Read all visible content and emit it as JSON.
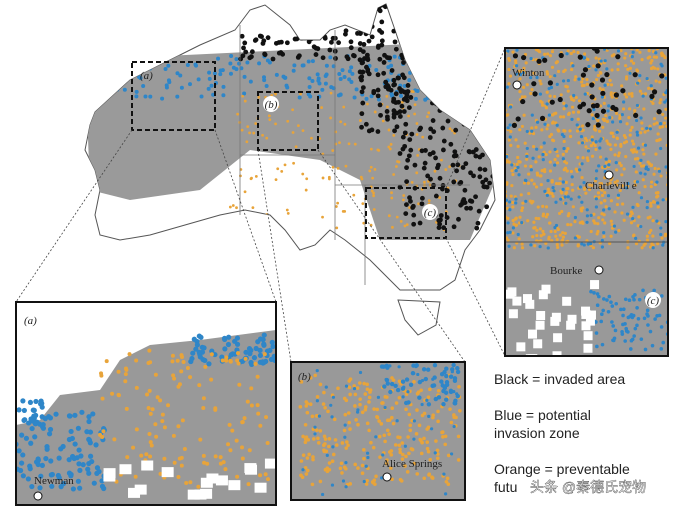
{
  "map": {
    "region_labels": [
      "(a)",
      "(b)",
      "(c)"
    ]
  },
  "insets": [
    {
      "label": "(a)",
      "places": [
        "Newman"
      ]
    },
    {
      "label": "(b)",
      "places": [
        "Alice Springs"
      ]
    },
    {
      "label": "(c)",
      "places": [
        "Winton",
        "Charlevill e",
        "Bourke"
      ]
    }
  ],
  "legend": [
    "Black = invaded area",
    "Blue = potential",
    "invasion zone",
    "Orange = preventable",
    "futu"
  ],
  "watermark": "头条 @秦德氏宠物"
}
